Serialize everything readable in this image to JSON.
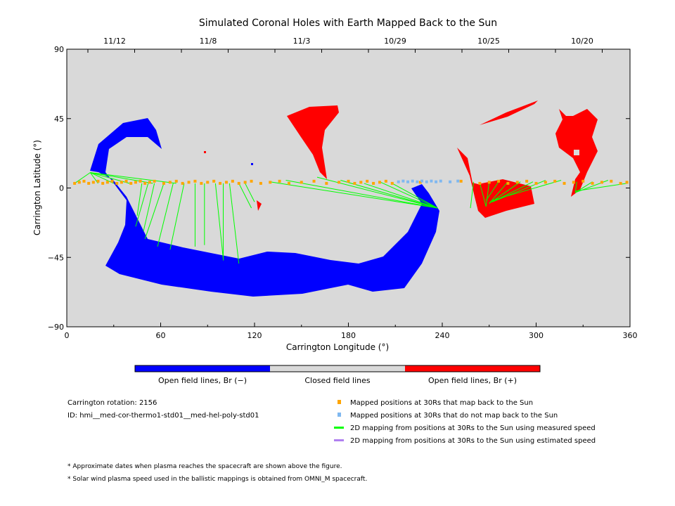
{
  "chart_data": {
    "type": "scatter",
    "title": "Simulated Coronal Holes with Earth Mapped Back to the Sun",
    "xlabel": "Carrington Longitude (°)",
    "ylabel": "Carrington Latitude (°)",
    "xlim": [
      0,
      360
    ],
    "ylim": [
      -90,
      90
    ],
    "xticks": [
      "0",
      "60",
      "120",
      "180",
      "240",
      "300",
      "360"
    ],
    "yticks": [
      "90",
      "45",
      "0",
      "−45",
      "−90"
    ],
    "top_dates": [
      "11/12",
      "11/8",
      "11/3",
      "10/29",
      "10/25",
      "10/20"
    ],
    "colorbar": [
      "Open field lines, Br (−)",
      "Closed field lines",
      "Open field lines, Br (+)"
    ],
    "colors": {
      "negative": "#0000ff",
      "positive": "#ff0000",
      "closed": "#d9d9d9",
      "mapped": "#ffa500",
      "unmapped": "#80b8f0",
      "measured": "#00ff00",
      "estimated": "#b080f0"
    },
    "mapped_lons": [
      5,
      8,
      11,
      14,
      17,
      20,
      23,
      26,
      29,
      32,
      35,
      38,
      41,
      44,
      47,
      50,
      53,
      56,
      62,
      66,
      70,
      74,
      78,
      82,
      86,
      90,
      94,
      98,
      102,
      106,
      110,
      114,
      118,
      124,
      130,
      136,
      142,
      150,
      158,
      166,
      174,
      180,
      184,
      188,
      192,
      196,
      200,
      204,
      208,
      226,
      252,
      264,
      270,
      276,
      282,
      288,
      294,
      300,
      306,
      312,
      318,
      324,
      330,
      336,
      342,
      348,
      354,
      358
    ],
    "unmapped_lons": [
      212,
      215,
      218,
      221,
      224,
      227,
      230,
      233,
      236,
      239,
      245,
      250
    ],
    "measured_lines": [
      [
        5,
        3,
        15,
        10
      ],
      [
        20,
        3,
        15,
        10
      ],
      [
        30,
        3,
        15,
        10
      ],
      [
        40,
        3,
        15,
        10
      ],
      [
        55,
        3,
        15,
        10
      ],
      [
        70,
        3,
        15,
        10
      ],
      [
        48,
        3,
        45,
        -18
      ],
      [
        52,
        3,
        44,
        -25
      ],
      [
        56,
        3,
        49,
        -28
      ],
      [
        62,
        3,
        50,
        -33
      ],
      [
        68,
        3,
        58,
        -38
      ],
      [
        75,
        3,
        66,
        -40
      ],
      [
        82,
        3,
        82,
        -38
      ],
      [
        88,
        3,
        88,
        -37
      ],
      [
        95,
        3,
        100,
        -46
      ],
      [
        100,
        3,
        100,
        -47
      ],
      [
        104,
        3,
        110,
        -49
      ],
      [
        110,
        3,
        118,
        -13
      ],
      [
        114,
        3,
        120,
        -9
      ],
      [
        140,
        5,
        237,
        -13
      ],
      [
        160,
        7,
        237,
        -13
      ],
      [
        175,
        5,
        237,
        -13
      ],
      [
        190,
        3,
        237,
        -13
      ],
      [
        200,
        4,
        237,
        -13
      ],
      [
        208,
        3,
        237,
        -13
      ],
      [
        130,
        4,
        237,
        -13
      ],
      [
        264,
        3,
        268,
        -12
      ],
      [
        270,
        4,
        268,
        -12
      ],
      [
        276,
        4,
        268,
        -8
      ],
      [
        282,
        4,
        270,
        -10
      ],
      [
        290,
        4,
        270,
        -10
      ],
      [
        298,
        4,
        272,
        -9
      ],
      [
        306,
        5,
        272,
        -9
      ],
      [
        316,
        5,
        272,
        -8
      ],
      [
        326,
        4,
        325,
        -3
      ],
      [
        336,
        4,
        325,
        -3
      ],
      [
        346,
        5,
        325,
        -3
      ],
      [
        358,
        3,
        325,
        -2
      ],
      [
        260,
        4,
        258,
        -13
      ]
    ],
    "info": {
      "rotation": "Carrington rotation: 2156",
      "id": "ID: hmi__med-cor-thermo1-std01__med-hel-poly-std01"
    },
    "legend": [
      "Mapped positions at 30Rs that map back to the Sun",
      "Mapped positions at 30Rs that do not map back to the Sun",
      "2D mapping from positions at 30Rs to the Sun using measured speed",
      "2D mapping from positions at 30Rs to the Sun using estimated speed"
    ],
    "notes": [
      "* Approximate dates when plasma reaches the spacecraft are shown above the figure.",
      "* Solar wind plasma speed used in the ballistic mappings is obtained from OMNI_M spacecraft."
    ]
  }
}
